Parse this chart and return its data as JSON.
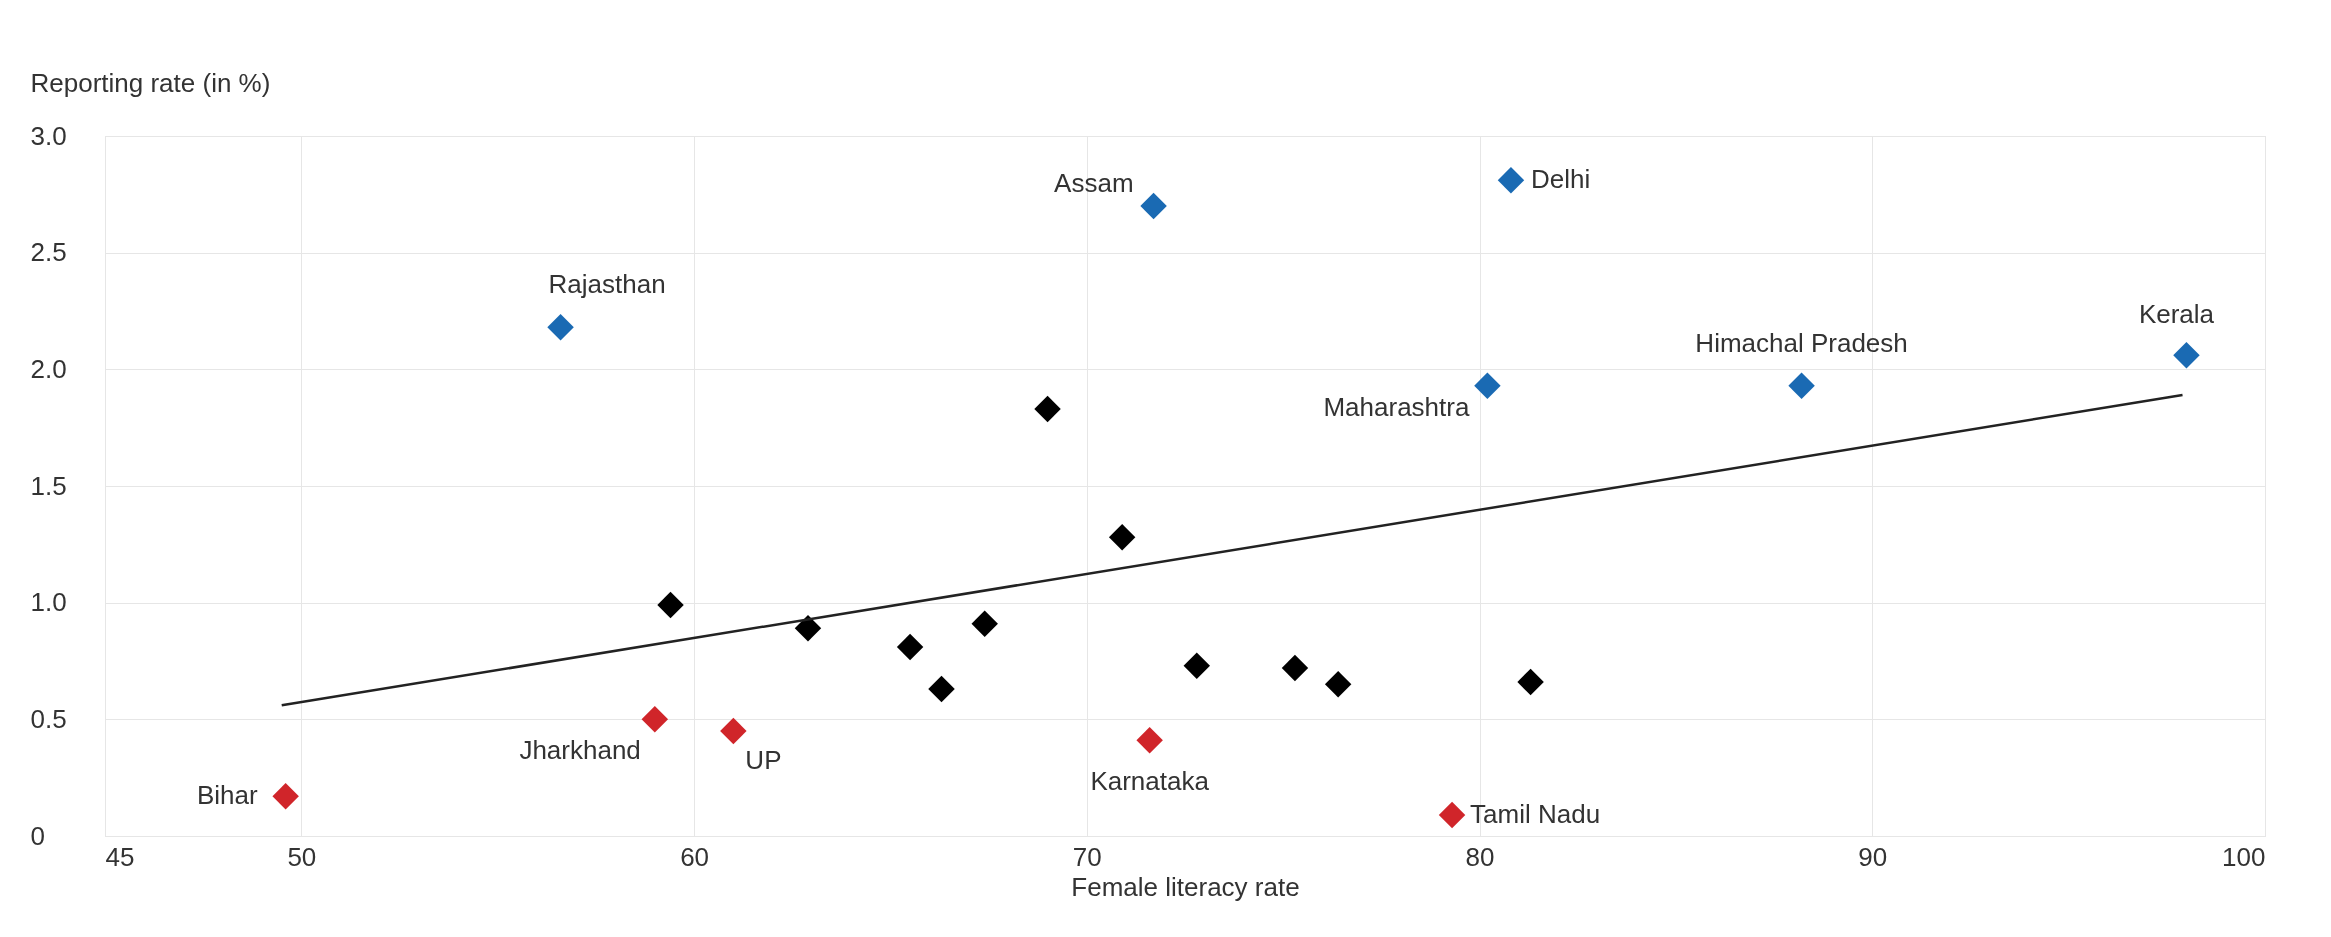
{
  "chart_data": {
    "type": "scatter",
    "ylabel": "Reporting rate (in %)",
    "xlabel": "Female literacy rate",
    "xlim": [
      45,
      100
    ],
    "xticks": [
      45,
      50,
      60,
      70,
      80,
      90,
      100
    ],
    "ylim": [
      0,
      3
    ],
    "yticks": [
      {
        "value": 0,
        "label": "0"
      },
      0.5,
      {
        "value": 1,
        "label": "1.0"
      },
      1.5,
      {
        "value": 2,
        "label": "2.0"
      },
      2.5,
      {
        "value": 3,
        "label": "3.0"
      }
    ],
    "grid": true,
    "marker": "diamond",
    "series": [
      {
        "color": "#1a6ab3",
        "x": [
          56.6,
          71.7,
          80.8,
          80.2,
          88.2,
          98.0
        ],
        "values": [
          2.18,
          2.7,
          2.81,
          1.93,
          1.93,
          2.06
        ]
      },
      {
        "color": "#000000",
        "x": [
          69.0,
          70.9,
          59.4,
          62.9,
          65.5,
          66.3,
          67.4,
          72.8,
          75.3,
          76.4,
          81.3
        ],
        "values": [
          1.83,
          1.28,
          0.99,
          0.89,
          0.81,
          0.63,
          0.91,
          0.73,
          0.72,
          0.65,
          0.66
        ]
      },
      {
        "color": "#d0252a",
        "x": [
          49.6,
          59.0,
          61.0,
          71.6,
          79.3
        ],
        "values": [
          0.17,
          0.5,
          0.45,
          0.41,
          0.09
        ]
      },
      {
        "type": "line",
        "marker": "none",
        "line_style": "solid",
        "color": "#222222",
        "x": [
          49.5,
          97.9
        ],
        "values": [
          0.56,
          1.89
        ]
      }
    ],
    "annotations": [
      {
        "text": "Rajasthan",
        "x": 56.6,
        "y": 2.18
      },
      {
        "text": "Assam",
        "x": 71.7,
        "y": 2.7
      },
      {
        "text": "Delhi",
        "x": 80.8,
        "y": 2.81
      },
      {
        "text": "Maharashtra",
        "x": 80.2,
        "y": 1.93
      },
      {
        "text": "Himachal Pradesh",
        "x": 88.2,
        "y": 1.93
      },
      {
        "text": "Kerala",
        "x": 98.0,
        "y": 2.06
      },
      {
        "text": "Bihar",
        "x": 49.6,
        "y": 0.17
      },
      {
        "text": "Jharkhand",
        "x": 59.0,
        "y": 0.5
      },
      {
        "text": "UP",
        "x": 61.0,
        "y": 0.45
      },
      {
        "text": "Karnataka",
        "x": 71.6,
        "y": 0.41
      },
      {
        "text": "Tamil Nadu",
        "x": 79.3,
        "y": 0.09
      }
    ]
  }
}
